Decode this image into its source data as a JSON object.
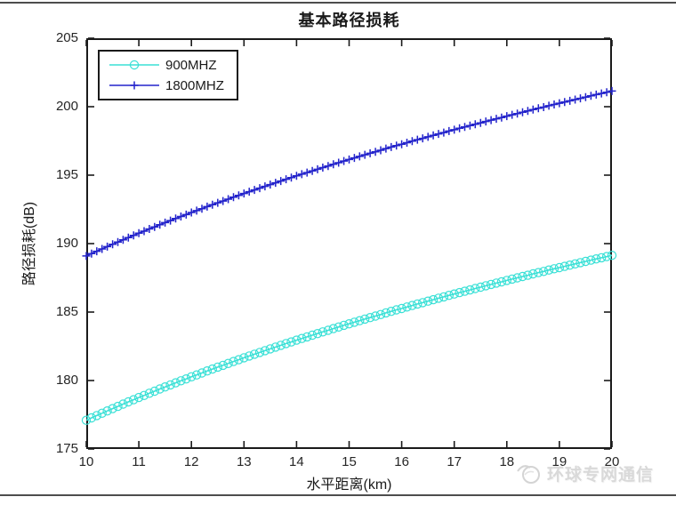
{
  "page": {
    "background": "#ffffff",
    "border_line_color": "#4d4d4d"
  },
  "watermark": {
    "text": "环球专网通信",
    "icon": "dove-globe-icon",
    "color": "#d9d9d9"
  },
  "chart_data": {
    "type": "line",
    "title": "基本路径损耗",
    "xlabel": "水平距离(km)",
    "ylabel": "路径损耗(dB)",
    "xlim": [
      10,
      20
    ],
    "ylim": [
      175,
      205
    ],
    "xticks": [
      10,
      11,
      12,
      13,
      14,
      15,
      16,
      17,
      18,
      19,
      20
    ],
    "yticks": [
      175,
      180,
      185,
      190,
      195,
      200,
      205
    ],
    "grid": false,
    "axis_color": "#1a1a1a",
    "tick_text_color": "#262626",
    "legend": {
      "position": "top-left",
      "border_color": "#1a1a1a"
    },
    "x_start": 10.0,
    "x_step": 0.1,
    "n_points": 101,
    "series": [
      {
        "name": "900MHZ",
        "color": "#3ae0d6",
        "marker": "circle",
        "y": [
          177.1,
          177.27,
          177.44,
          177.61,
          177.78,
          177.95,
          178.11,
          178.28,
          178.44,
          178.6,
          178.76,
          178.91,
          179.07,
          179.22,
          179.38,
          179.53,
          179.68,
          179.83,
          179.98,
          180.12,
          180.27,
          180.41,
          180.55,
          180.7,
          180.84,
          180.98,
          181.11,
          181.25,
          181.39,
          181.52,
          181.66,
          181.79,
          181.92,
          182.05,
          182.18,
          182.31,
          182.44,
          182.57,
          182.7,
          182.82,
          182.95,
          183.07,
          183.19,
          183.31,
          183.43,
          183.55,
          183.67,
          183.79,
          183.91,
          184.03,
          184.14,
          184.26,
          184.37,
          184.49,
          184.6,
          184.71,
          184.82,
          184.94,
          185.05,
          185.16,
          185.26,
          185.37,
          185.48,
          185.59,
          185.69,
          185.8,
          185.9,
          186.01,
          186.11,
          186.22,
          186.32,
          186.42,
          186.52,
          186.62,
          186.72,
          186.82,
          186.92,
          187.02,
          187.12,
          187.21,
          187.31,
          187.41,
          187.5,
          187.6,
          187.69,
          187.79,
          187.88,
          187.97,
          188.07,
          188.16,
          188.25,
          188.34,
          188.43,
          188.52,
          188.61,
          188.7,
          188.79,
          188.88,
          188.97,
          189.05,
          189.14
        ]
      },
      {
        "name": "1800MHZ",
        "color": "#2323cb",
        "marker": "plus",
        "y": [
          189.1,
          189.27,
          189.44,
          189.61,
          189.78,
          189.95,
          190.11,
          190.28,
          190.44,
          190.6,
          190.76,
          190.91,
          191.07,
          191.22,
          191.38,
          191.53,
          191.68,
          191.83,
          191.98,
          192.12,
          192.27,
          192.41,
          192.55,
          192.7,
          192.84,
          192.98,
          193.11,
          193.25,
          193.39,
          193.52,
          193.66,
          193.79,
          193.92,
          194.05,
          194.18,
          194.31,
          194.44,
          194.57,
          194.7,
          194.82,
          194.95,
          195.07,
          195.19,
          195.31,
          195.43,
          195.55,
          195.67,
          195.79,
          195.91,
          196.03,
          196.14,
          196.26,
          196.37,
          196.49,
          196.6,
          196.71,
          196.82,
          196.94,
          197.05,
          197.16,
          197.26,
          197.37,
          197.48,
          197.59,
          197.69,
          197.8,
          197.9,
          198.01,
          198.11,
          198.22,
          198.32,
          198.42,
          198.52,
          198.62,
          198.72,
          198.82,
          198.92,
          199.02,
          199.12,
          199.21,
          199.31,
          199.41,
          199.5,
          199.6,
          199.69,
          199.79,
          199.88,
          199.97,
          200.07,
          200.16,
          200.25,
          200.34,
          200.43,
          200.52,
          200.61,
          200.7,
          200.79,
          200.88,
          200.97,
          201.05,
          201.14
        ]
      }
    ]
  }
}
